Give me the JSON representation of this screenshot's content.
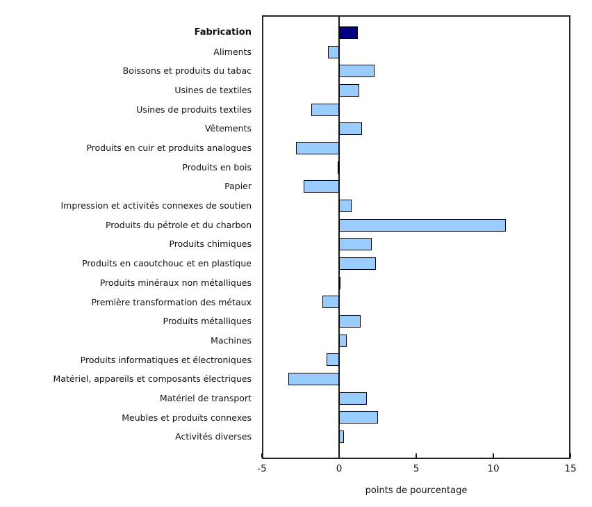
{
  "chart_data": {
    "type": "bar",
    "orientation": "horizontal",
    "title": "",
    "xlabel": "points de pourcentage",
    "ylabel": "",
    "xlim": [
      -5,
      15
    ],
    "xticks": [
      -5,
      0,
      5,
      10,
      15
    ],
    "grid": false,
    "legend": false,
    "categories": [
      "Fabrication",
      "Aliments",
      "Boissons et produits du tabac",
      "Usines de textiles",
      "Usines de produits textiles",
      "Vêtements",
      "Produits en cuir et produits analogues",
      "Produits en bois",
      "Papier",
      "Impression et activités connexes de soutien",
      "Produits du pétrole et du charbon",
      "Produits chimiques",
      "Produits en caoutchouc et en plastique",
      "Produits minéraux non métalliques",
      "Première transformation des métaux",
      "Produits métalliques",
      "Machines",
      "Produits informatiques et électroniques",
      "Matériel, appareils et composants électriques",
      "Matériel de transport",
      "Meubles et produits connexes",
      "Activités diverses"
    ],
    "values": [
      1.2,
      -0.7,
      2.3,
      1.3,
      -1.8,
      1.5,
      -2.8,
      -0.1,
      -2.3,
      0.8,
      10.8,
      2.1,
      2.4,
      0.0,
      -1.1,
      1.4,
      0.5,
      -0.8,
      -3.3,
      1.8,
      2.5,
      0.3
    ],
    "emphasized_index": 0,
    "colors": {
      "bar_fill": "#99CCFF",
      "bar_emphasis_fill": "#000080",
      "bar_border": "#000000",
      "plot_border": "#262626",
      "text": "#111111"
    }
  }
}
